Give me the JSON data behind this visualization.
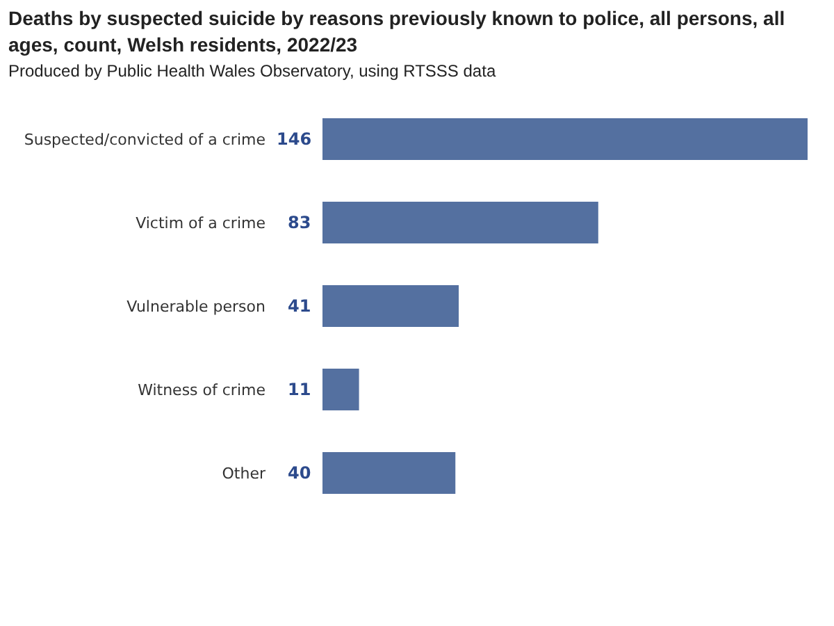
{
  "chart_data": {
    "type": "bar",
    "orientation": "horizontal",
    "title": "Deaths by suspected suicide by reasons previously known to police, all persons, all ages, count, Welsh residents, 2022/23",
    "subtitle": "Produced by Public Health Wales Observatory, using RTSSS data",
    "categories": [
      "Suspected/convicted of a crime",
      "Victim of a crime",
      "Vulnerable person",
      "Witness of crime",
      "Other"
    ],
    "values": [
      146,
      83,
      41,
      11,
      40
    ],
    "color": "#5470a0",
    "data_labels": true,
    "grid": false,
    "legend": false
  }
}
